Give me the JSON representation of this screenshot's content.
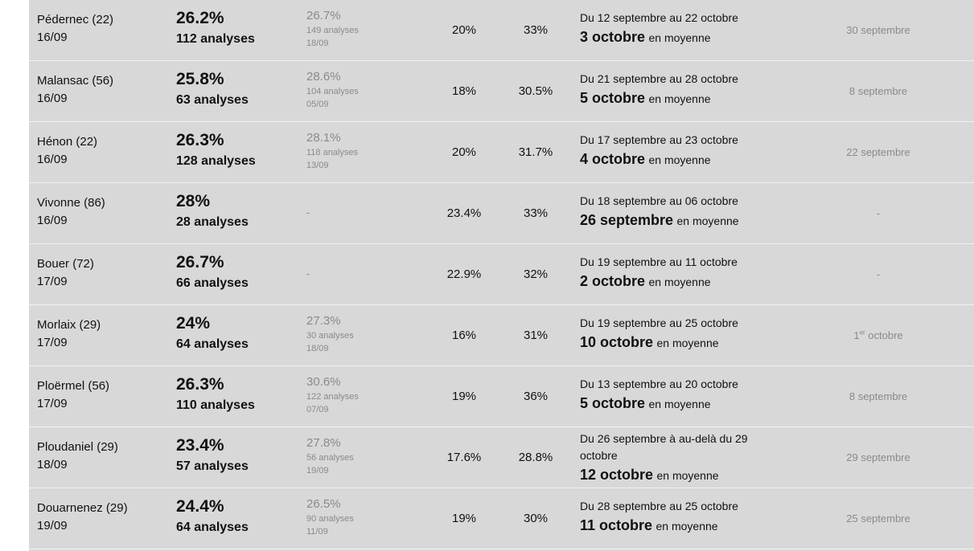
{
  "rows": [
    {
      "name": "Pédernec (22)",
      "date": "16/09",
      "rate": "26.2%",
      "analyses": "112 analyses",
      "prev": {
        "rate": "26.7%",
        "analyses": "149 analyses",
        "date": "18/09"
      },
      "v1": "20%",
      "v2": "33%",
      "range": "Du 12 septembre au 22 octobre",
      "avg_date": "3 octobre",
      "avg_label": "en moyenne",
      "last": "30 septembre"
    },
    {
      "name": "Malansac (56)",
      "date": "16/09",
      "rate": "25.8%",
      "analyses": "63 analyses",
      "prev": {
        "rate": "28.6%",
        "analyses": "104 analyses",
        "date": "05/09"
      },
      "v1": "18%",
      "v2": "30.5%",
      "range": "Du 21 septembre au 28 octobre",
      "avg_date": "5 octobre",
      "avg_label": "en moyenne",
      "last": "8 septembre"
    },
    {
      "name": "Hénon (22)",
      "date": "16/09",
      "rate": "26.3%",
      "analyses": "128 analyses",
      "prev": {
        "rate": "28.1%",
        "analyses": "118 analyses",
        "date": "13/09"
      },
      "v1": "20%",
      "v2": "31.7%",
      "range": "Du 17 septembre au 23 octobre",
      "avg_date": "4 octobre",
      "avg_label": "en moyenne",
      "last": "22 septembre"
    },
    {
      "name": "Vivonne (86)",
      "date": "16/09",
      "rate": "28%",
      "analyses": "28 analyses",
      "prev_dash": "-",
      "v1": "23.4%",
      "v2": "33%",
      "range": "Du 18 septembre au 06 octobre",
      "avg_date": "26 septembre",
      "avg_label": "en moyenne",
      "last": "-"
    },
    {
      "name": "Bouer (72)",
      "date": "17/09",
      "rate": "26.7%",
      "analyses": "66 analyses",
      "prev_dash": "-",
      "v1": "22.9%",
      "v2": "32%",
      "range": "Du 19 septembre au 11 octobre",
      "avg_date": "2 octobre",
      "avg_label": "en moyenne",
      "last": "-"
    },
    {
      "name": "Morlaix (29)",
      "date": "17/09",
      "rate": "24%",
      "analyses": "64 analyses",
      "prev": {
        "rate": "27.3%",
        "analyses": "30 analyses",
        "date": "18/09"
      },
      "v1": "16%",
      "v2": "31%",
      "range": "Du 19 septembre au 25 octobre",
      "avg_date": "10 octobre",
      "avg_label": "en moyenne",
      "last_num": "1",
      "last_sup": "er",
      "last_rest": " octobre"
    },
    {
      "name": "Ploërmel (56)",
      "date": "17/09",
      "rate": "26.3%",
      "analyses": "110 analyses",
      "prev": {
        "rate": "30.6%",
        "analyses": "122 analyses",
        "date": "07/09"
      },
      "v1": "19%",
      "v2": "36%",
      "range": "Du 13 septembre au 20 octobre",
      "avg_date": "5 octobre",
      "avg_label": "en moyenne",
      "last": "8 septembre"
    },
    {
      "name": "Ploudaniel (29)",
      "date": "18/09",
      "rate": "23.4%",
      "analyses": "57 analyses",
      "prev": {
        "rate": "27.8%",
        "analyses": "56 analyses",
        "date": "19/09"
      },
      "v1": "17.6%",
      "v2": "28.8%",
      "range": "Du 26 septembre à au-delà du 29 octobre",
      "avg_date": "12 octobre",
      "avg_label": "en moyenne",
      "last": "29 septembre"
    },
    {
      "name": "Douarnenez (29)",
      "date": "19/09",
      "rate": "24.4%",
      "analyses": "64 analyses",
      "prev": {
        "rate": "26.5%",
        "analyses": "90 analyses",
        "date": "11/09"
      },
      "v1": "19%",
      "v2": "30%",
      "range": "Du 28 septembre au 25 octobre",
      "avg_date": "11 octobre",
      "avg_label": "en moyenne",
      "last": "25 septembre"
    }
  ]
}
